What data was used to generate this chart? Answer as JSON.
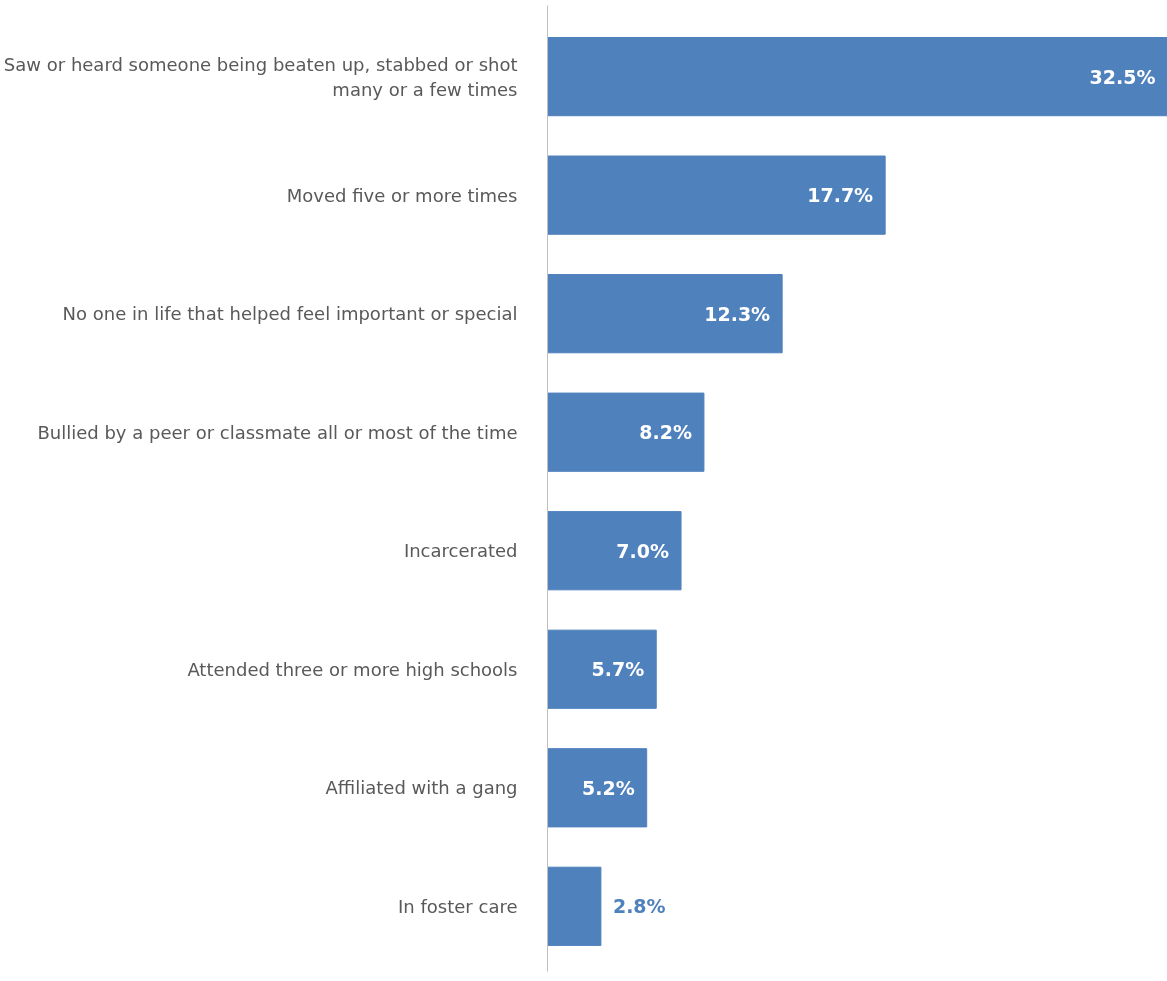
{
  "chart_data": {
    "type": "bar",
    "orientation": "horizontal",
    "categories": [
      "Saw or heard someone being beaten up, stabbed or shot many or a few times",
      "Moved five or more times",
      "No one in life that helped feel important or special",
      "Bullied by a peer or classmate all or most of the time",
      "Incarcerated",
      "Attended three or more high schools",
      "Affiliated with a gang",
      "In foster care"
    ],
    "values": [
      32.5,
      17.7,
      12.3,
      8.2,
      7.0,
      5.7,
      5.2,
      2.8
    ],
    "value_labels": [
      "32.5%",
      "17.7%",
      "12.3%",
      "8.2%",
      "7.0%",
      "5.7%",
      "5.2%",
      "2.8%"
    ],
    "color": "#4f81bd",
    "grid": false
  }
}
